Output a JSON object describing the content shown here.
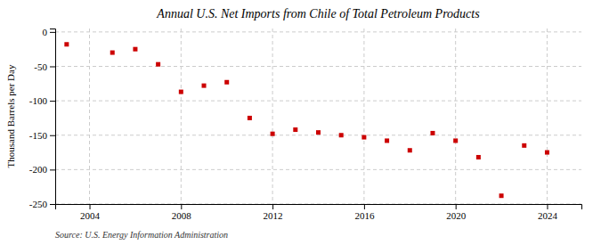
{
  "chart_data": {
    "type": "scatter",
    "title": "Annual U.S. Net Imports from Chile of Total Petroleum Products",
    "ylabel": "Thousand Barrels per Day",
    "source": "Source: U.S. Energy Information Administration",
    "x": [
      2003,
      2005,
      2006,
      2007,
      2008,
      2009,
      2010,
      2011,
      2012,
      2013,
      2014,
      2015,
      2016,
      2017,
      2018,
      2019,
      2020,
      2021,
      2022,
      2023,
      2024
    ],
    "values": [
      -18,
      -30,
      -25,
      -47,
      -87,
      -78,
      -73,
      -125,
      -148,
      -142,
      -146,
      -150,
      -153,
      -158,
      -172,
      -147,
      -158,
      -182,
      -238,
      -165,
      -175
    ],
    "color": "#cc0000",
    "marker": "square",
    "xlim": [
      2002.5,
      2025.5
    ],
    "ylim": [
      -250,
      5
    ],
    "xticks": [
      2004,
      2008,
      2012,
      2016,
      2020,
      2024
    ],
    "yticks": [
      0,
      -50,
      -100,
      -150,
      -200,
      -250
    ],
    "grid": true
  }
}
